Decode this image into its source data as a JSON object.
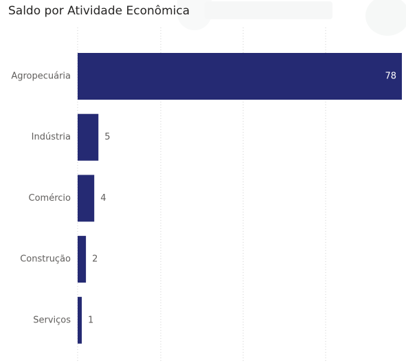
{
  "chart_title": "Saldo por Atividade Econômica",
  "colors": {
    "bar": "#252a73",
    "label_inside": "#ffffff",
    "label_outside": "#605e5c",
    "grid": "#cfcfcf"
  },
  "chart_data": {
    "type": "bar",
    "orientation": "horizontal",
    "title": "Saldo por Atividade Econômica",
    "categories": [
      "Agropecuária",
      "Indústria",
      "Comércio",
      "Construção",
      "Serviços"
    ],
    "values": [
      78,
      5,
      4,
      2,
      1
    ],
    "xlim": [
      0,
      78
    ],
    "grid": "vertical dotted",
    "data_labels": true,
    "legend": "none"
  }
}
